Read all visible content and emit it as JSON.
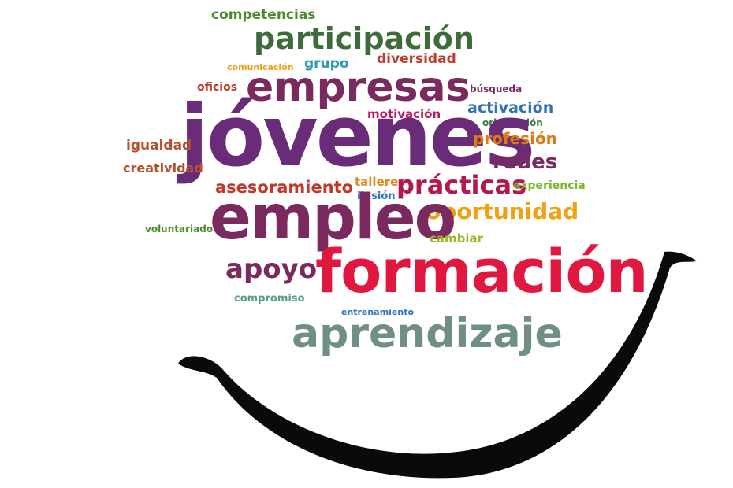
{
  "words": {
    "competencias": "competencias",
    "participacion": "participación",
    "comunicacion": "comunicación",
    "grupo": "grupo",
    "diversidad": "diversidad",
    "oficios": "oficios",
    "empresas": "empresas",
    "busqueda": "búsqueda",
    "activacion": "activación",
    "motivacion": "motivación",
    "orientacion": "orientación",
    "jovenes": "jóvenes",
    "igualdad": "igualdad",
    "profesion": "profesión",
    "creatividad": "creatividad",
    "redes": "redes",
    "talleres": "talleres",
    "asesoramiento": "asesoramiento",
    "practicas": "prácticas",
    "experiencia": "experiencia",
    "ilusion": "ilusión",
    "oportunidad": "oportunidad",
    "empleo": "empleo",
    "voluntariado": "voluntariado",
    "cambiar": "cambiar",
    "apoyo": "apoyo",
    "formacion": "formación",
    "compromiso": "compromiso",
    "entrenamiento": "entrenamiento",
    "aprendizaje": "aprendizaje"
  },
  "colors": {
    "purple": "#6a2c79",
    "plum": "#7a2a5e",
    "red": "#e0173f",
    "green": "#4a8a2a",
    "darkgreen": "#3e7d3a",
    "teal": "#2a9ab0",
    "orange": "#f0a010",
    "brown": "#b5502a",
    "gray": "#6f8f86",
    "blue": "#2f72b8",
    "lime": "#7ab82a",
    "magenta": "#c2185b",
    "smile": "#0a0a0a"
  }
}
